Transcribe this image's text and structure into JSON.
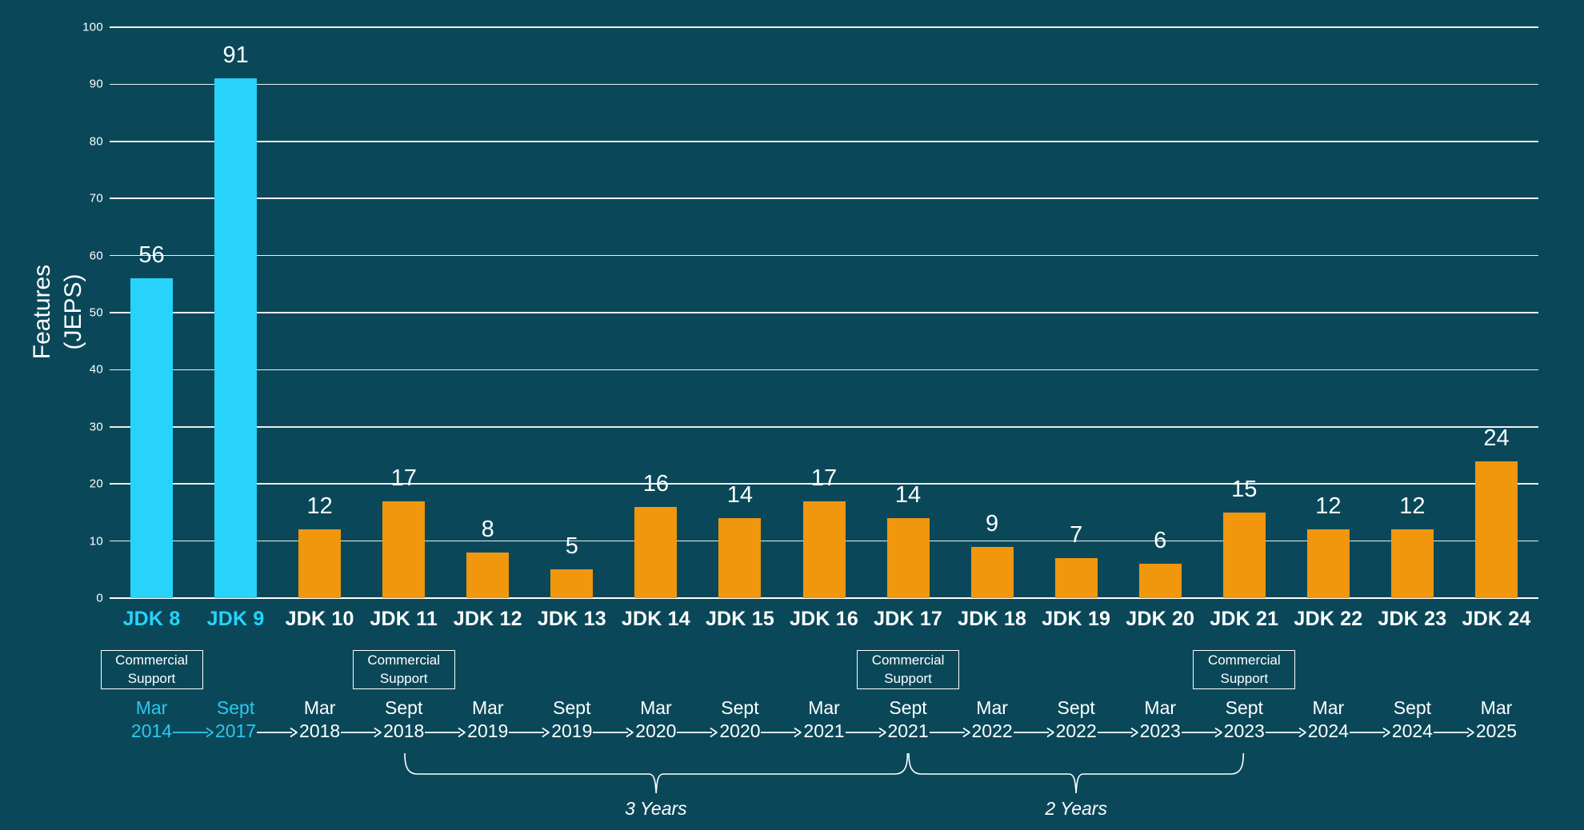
{
  "colors": {
    "background": "#0a4859",
    "bar_accent": "#27d3fb",
    "bar_default": "#f0970e",
    "text_accent": "#2cc8ef",
    "text_default": "#ffffff",
    "gridline": "#ffffff"
  },
  "y_axis": {
    "title_line1": "Features",
    "title_line2": "(JEPS)"
  },
  "chart_data": {
    "type": "bar",
    "title": "",
    "xlabel": "",
    "ylabel": "Features (JEPS)",
    "ylim": [
      0,
      100
    ],
    "yticks": [
      100,
      90,
      80,
      70,
      60,
      50,
      40,
      30,
      20,
      10,
      0
    ],
    "grid": "horizontal",
    "legend_position": "none",
    "categories": [
      "JDK 8",
      "JDK 9",
      "JDK 10",
      "JDK 11",
      "JDK 12",
      "JDK 13",
      "JDK 14",
      "JDK 15",
      "JDK 16",
      "JDK 17",
      "JDK 18",
      "JDK 19",
      "JDK 20",
      "JDK 21",
      "JDK 22",
      "JDK 23",
      "JDK 24"
    ],
    "values": [
      56,
      91,
      12,
      17,
      8,
      5,
      16,
      14,
      17,
      14,
      9,
      7,
      6,
      15,
      12,
      12,
      24
    ],
    "bars": [
      {
        "label": "JDK 8",
        "value": 56,
        "accent": true,
        "month": "Mar",
        "year": "2014",
        "commercial_support": true
      },
      {
        "label": "JDK 9",
        "value": 91,
        "accent": true,
        "month": "Sept",
        "year": "2017",
        "commercial_support": false
      },
      {
        "label": "JDK 10",
        "value": 12,
        "accent": false,
        "month": "Mar",
        "year": "2018",
        "commercial_support": false
      },
      {
        "label": "JDK 11",
        "value": 17,
        "accent": false,
        "month": "Sept",
        "year": "2018",
        "commercial_support": true
      },
      {
        "label": "JDK 12",
        "value": 8,
        "accent": false,
        "month": "Mar",
        "year": "2019",
        "commercial_support": false
      },
      {
        "label": "JDK 13",
        "value": 5,
        "accent": false,
        "month": "Sept",
        "year": "2019",
        "commercial_support": false
      },
      {
        "label": "JDK 14",
        "value": 16,
        "accent": false,
        "month": "Mar",
        "year": "2020",
        "commercial_support": false
      },
      {
        "label": "JDK 15",
        "value": 14,
        "accent": false,
        "month": "Sept",
        "year": "2020",
        "commercial_support": false
      },
      {
        "label": "JDK 16",
        "value": 17,
        "accent": false,
        "month": "Mar",
        "year": "2021",
        "commercial_support": false
      },
      {
        "label": "JDK 17",
        "value": 14,
        "accent": false,
        "month": "Sept",
        "year": "2021",
        "commercial_support": true
      },
      {
        "label": "JDK 18",
        "value": 9,
        "accent": false,
        "month": "Mar",
        "year": "2022",
        "commercial_support": false
      },
      {
        "label": "JDK 19",
        "value": 7,
        "accent": false,
        "month": "Sept",
        "year": "2022",
        "commercial_support": false
      },
      {
        "label": "JDK 20",
        "value": 6,
        "accent": false,
        "month": "Mar",
        "year": "2023",
        "commercial_support": false
      },
      {
        "label": "JDK 21",
        "value": 15,
        "accent": false,
        "month": "Sept",
        "year": "2023",
        "commercial_support": true
      },
      {
        "label": "JDK 22",
        "value": 12,
        "accent": false,
        "month": "Mar",
        "year": "2024",
        "commercial_support": false
      },
      {
        "label": "JDK 23",
        "value": 12,
        "accent": false,
        "month": "Sept",
        "year": "2024",
        "commercial_support": false
      },
      {
        "label": "JDK 24",
        "value": 24,
        "accent": false,
        "month": "Mar",
        "year": "2025",
        "commercial_support": false
      }
    ],
    "commercial_support_label_line1": "Commercial",
    "commercial_support_label_line2": "Support",
    "braces": [
      {
        "from_index": 3,
        "to_index": 9,
        "label": "3 Years"
      },
      {
        "from_index": 9,
        "to_index": 13,
        "label": "2 Years"
      }
    ],
    "timeline_arrow_count": 16,
    "timeline_accent_arrow_indexes": [
      0
    ]
  }
}
